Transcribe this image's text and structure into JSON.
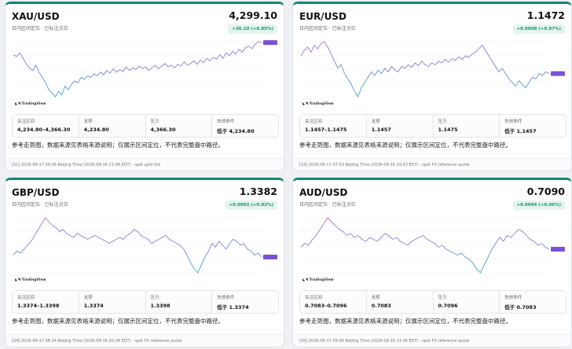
{
  "cards": [
    {
      "symbol": "XAU/USD",
      "price": "4,299.10",
      "subtitle": "日内区间定位 · 已标注点位",
      "change": "+36.10 (+0.85%)",
      "boxes": [
        {
          "label": "关注区间",
          "value": "4,234.80–4,366.30"
        },
        {
          "label": "支撑",
          "value": "4,234.80"
        },
        {
          "label": "压力",
          "value": "4,366.30"
        },
        {
          "label": "失效条件",
          "value": "低于 4,234.80"
        }
      ],
      "note": "参考走势图，数据来源见表格来源说明；仅展示区间定位，不代表完整盘中路径。",
      "footer": "[S1] 2026-09-17 09:06 Beijing Time (2026-09-16 21:06 EDT) · spot gold bid",
      "line_color": "#8b5fd6",
      "chart_data": {
        "type": "line",
        "y": [
          70,
          68,
          72,
          66,
          60,
          55,
          52,
          58,
          50,
          44,
          38,
          30,
          26,
          22,
          28,
          24,
          34,
          30,
          36,
          40,
          38,
          44,
          42,
          46,
          44,
          48,
          46,
          50,
          47,
          52,
          49,
          54,
          50,
          53,
          51,
          56,
          52,
          55,
          53,
          57,
          54,
          56,
          52,
          55,
          58,
          54,
          57,
          60,
          56,
          58,
          55,
          59,
          57,
          62,
          58,
          60,
          63,
          59,
          64,
          61,
          66,
          63,
          67,
          65,
          70,
          66,
          72,
          69,
          74,
          71,
          76,
          73,
          78,
          80,
          77,
          82,
          85,
          84
        ]
      }
    },
    {
      "symbol": "EUR/USD",
      "price": "1.1472",
      "subtitle": "日内区间定位 · 已标注点位",
      "change": "+0.0008 (+0.07%)",
      "boxes": [
        {
          "label": "关注区间",
          "value": "1.1457–1.1475"
        },
        {
          "label": "支撑",
          "value": "1.1457"
        },
        {
          "label": "压力",
          "value": "1.1475"
        },
        {
          "label": "失效条件",
          "value": "低于 1.1457"
        }
      ],
      "note": "参考走势图，数据来源见表格来源说明；仅展示区间定位，不代表完整盘中路径。",
      "footer": "[S3] 2026-09-17 07:53 Beijing Time (2026-09-16 19:53 EDT) · spot FX reference quote",
      "line_color": "#8b5fd6",
      "chart_data": {
        "type": "line",
        "y": [
          70,
          76,
          80,
          74,
          82,
          78,
          84,
          86,
          80,
          72,
          64,
          56,
          60,
          50,
          44,
          38,
          30,
          24,
          34,
          40,
          46,
          52,
          48,
          54,
          50,
          56,
          52,
          58,
          54,
          52,
          58,
          56,
          60,
          57,
          62,
          59,
          64,
          60,
          58,
          62,
          60,
          64,
          62,
          66,
          63,
          67,
          65,
          69,
          66,
          70,
          68,
          72,
          74,
          78,
          82,
          76,
          70,
          64,
          58,
          52,
          56,
          50,
          44,
          40,
          36,
          42,
          38,
          34,
          40,
          46,
          44,
          50,
          48,
          52,
          50
        ]
      }
    },
    {
      "symbol": "GBP/USD",
      "price": "1.3382",
      "subtitle": "日内区间定位 · 已标注点位",
      "change": "+0.0003 (+0.02%)",
      "boxes": [
        {
          "label": "关注区间",
          "value": "1.3374–1.3398"
        },
        {
          "label": "支撑",
          "value": "1.3374"
        },
        {
          "label": "压力",
          "value": "1.3398"
        },
        {
          "label": "失效条件",
          "value": "低于 1.3374"
        }
      ],
      "note": "参考走势图，数据来源见表格来源说明；仅展示区间定位，不代表完整盘中路径。",
      "footer": "[S4] 2026-09-17 08:34 Beijing Time (2026-09-16 20:34 EDT) · spot FX reference quote",
      "line_color": "#8b5fd6",
      "chart_data": {
        "type": "line",
        "y": [
          44,
          48,
          46,
          50,
          54,
          58,
          64,
          70,
          76,
          82,
          78,
          74,
          72,
          68,
          70,
          66,
          64,
          62,
          66,
          64,
          62,
          60,
          62,
          64,
          62,
          60,
          58,
          56,
          58,
          60,
          62,
          60,
          64,
          66,
          70,
          68,
          64,
          62,
          60,
          56,
          58,
          60,
          62,
          64,
          60,
          58,
          56,
          54,
          50,
          44,
          36,
          30,
          26,
          34,
          42,
          48,
          56,
          52,
          58,
          54,
          50,
          56,
          60,
          58,
          54,
          56,
          50,
          48,
          44,
          46,
          42
        ]
      }
    },
    {
      "symbol": "AUD/USD",
      "price": "0.7090",
      "subtitle": "日内区间定位 · 已标注点位",
      "change": "+0.0004 (+0.06%)",
      "boxes": [
        {
          "label": "关注区间",
          "value": "0.7083–0.7096"
        },
        {
          "label": "支撑",
          "value": "0.7083"
        },
        {
          "label": "压力",
          "value": "0.7096"
        },
        {
          "label": "失效条件",
          "value": "低于 0.7083"
        }
      ],
      "note": "参考走势图，数据来源见表格来源说明；仅展示区间定位，不代表完整盘中路径。",
      "footer": "[S5] 2026-09-17 09:06 Beijing Time (2026-09-16 21:06 EDT) · spot FX reference quote",
      "line_color": "#8b5fd6",
      "chart_data": {
        "type": "line",
        "y": [
          48,
          52,
          50,
          56,
          60,
          66,
          72,
          78,
          74,
          70,
          66,
          64,
          60,
          62,
          58,
          60,
          56,
          54,
          58,
          56,
          54,
          58,
          62,
          60,
          56,
          58,
          54,
          52,
          50,
          54,
          56,
          58,
          60,
          56,
          54,
          52,
          48,
          50,
          46,
          44,
          42,
          40,
          42,
          38,
          36,
          32,
          26,
          22,
          30,
          38,
          46,
          52,
          58,
          54,
          60,
          58,
          62,
          66,
          64,
          60,
          56,
          54,
          50,
          52,
          48,
          46
        ]
      }
    }
  ]
}
